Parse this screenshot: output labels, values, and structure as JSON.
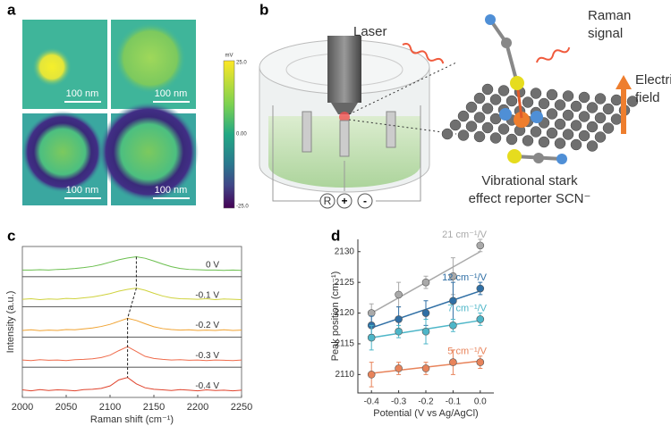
{
  "panels": {
    "a": {
      "label": "a",
      "scale_bars": [
        "100 nm",
        "100 nm",
        "100 nm",
        "100 nm"
      ],
      "colorbar": {
        "unit": "mV",
        "max": "25.0",
        "mid": "0.00",
        "min": "-25.0"
      }
    },
    "b": {
      "label": "b",
      "laser": "Laser",
      "raman": [
        "Raman",
        "signal"
      ],
      "field": [
        "Electric",
        "field"
      ],
      "reporter": [
        "Vibrational stark",
        "effect reporter SCN⁻"
      ],
      "electrodes": [
        "R",
        "+",
        "-"
      ]
    },
    "c": {
      "label": "c"
    },
    "d": {
      "label": "d"
    }
  },
  "chart_data": [
    {
      "type": "line",
      "xlabel": "Raman shift (cm⁻¹)",
      "ylabel": "Intensity (a.u.)",
      "x": [
        2000,
        2010,
        2020,
        2030,
        2040,
        2050,
        2060,
        2070,
        2080,
        2090,
        2100,
        2110,
        2120,
        2130,
        2140,
        2150,
        2160,
        2170,
        2180,
        2190,
        2200,
        2210,
        2220,
        2230,
        2240,
        2250
      ],
      "xlim": [
        2000,
        2250
      ],
      "xticks": [
        2000,
        2050,
        2100,
        2150,
        2200,
        2250
      ],
      "ylim": [
        0,
        1
      ],
      "series": [
        {
          "name": "0 V",
          "color": "#6bbf4e",
          "values": [
            0.22,
            0.22,
            0.23,
            0.22,
            0.24,
            0.25,
            0.27,
            0.3,
            0.34,
            0.4,
            0.48,
            0.56,
            0.62,
            0.66,
            0.61,
            0.52,
            0.42,
            0.33,
            0.27,
            0.24,
            0.23,
            0.22,
            0.22,
            0.21,
            0.22,
            0.21
          ]
        },
        {
          "name": "-0.1 V",
          "color": "#cfd23c",
          "values": [
            0.25,
            0.27,
            0.24,
            0.26,
            0.25,
            0.28,
            0.27,
            0.3,
            0.33,
            0.38,
            0.44,
            0.52,
            0.58,
            0.62,
            0.55,
            0.45,
            0.36,
            0.3,
            0.27,
            0.26,
            0.25,
            0.27,
            0.24,
            0.26,
            0.25,
            0.24
          ]
        },
        {
          "name": "-0.2 V",
          "color": "#f0a332",
          "values": [
            0.22,
            0.24,
            0.21,
            0.23,
            0.22,
            0.25,
            0.24,
            0.27,
            0.3,
            0.35,
            0.42,
            0.52,
            0.62,
            0.55,
            0.44,
            0.34,
            0.28,
            0.25,
            0.23,
            0.24,
            0.22,
            0.23,
            0.22,
            0.24,
            0.22,
            0.23
          ]
        },
        {
          "name": "-0.3 V",
          "color": "#ef6b4b",
          "values": [
            0.24,
            0.22,
            0.25,
            0.23,
            0.24,
            0.22,
            0.25,
            0.26,
            0.28,
            0.32,
            0.4,
            0.55,
            0.68,
            0.52,
            0.36,
            0.29,
            0.26,
            0.24,
            0.25,
            0.23,
            0.24,
            0.22,
            0.24,
            0.23,
            0.22,
            0.24
          ]
        },
        {
          "name": "-0.4 V",
          "color": "#e0432c",
          "values": [
            0.25,
            0.22,
            0.26,
            0.23,
            0.25,
            0.24,
            0.22,
            0.26,
            0.27,
            0.3,
            0.38,
            0.58,
            0.66,
            0.45,
            0.32,
            0.27,
            0.25,
            0.23,
            0.26,
            0.24,
            0.22,
            0.25,
            0.23,
            0.24,
            0.22,
            0.24
          ]
        }
      ]
    },
    {
      "type": "scatter",
      "xlabel": "Potential (V vs Ag/AgCl)",
      "ylabel": "Peak position (cm⁻¹)",
      "x": [
        -0.4,
        -0.3,
        -0.2,
        -0.1,
        0
      ],
      "xlim": [
        -0.45,
        0.05
      ],
      "xticks": [
        -0.4,
        -0.3,
        -0.2,
        -0.1,
        {
          "value": 0,
          "label": "0.0"
        }
      ],
      "ylim": [
        2107,
        2132
      ],
      "yticks": [
        2110,
        2115,
        2120,
        2125,
        2130
      ],
      "series": [
        {
          "name": "21 cm⁻¹/V",
          "color": "#a9a9a9",
          "values": [
            2120,
            2123,
            2125,
            2126,
            2131
          ],
          "errors": [
            1.5,
            2,
            1,
            3,
            1
          ]
        },
        {
          "name": "12 cm⁻¹/V",
          "color": "#2f6fa5",
          "values": [
            2118,
            2119,
            2120,
            2122,
            2124
          ],
          "errors": [
            1.5,
            2,
            2,
            3,
            1
          ]
        },
        {
          "name": "7 cm⁻¹/V",
          "color": "#4db6c8",
          "values": [
            2116,
            2117,
            2117,
            2118,
            2119
          ],
          "errors": [
            2,
            1,
            2,
            1,
            1
          ]
        },
        {
          "name": "5 cm⁻¹/V",
          "color": "#e8835a",
          "values": [
            2110,
            2111,
            2111,
            2112,
            2112
          ],
          "errors": [
            2,
            1,
            1,
            2,
            1
          ]
        }
      ]
    }
  ]
}
